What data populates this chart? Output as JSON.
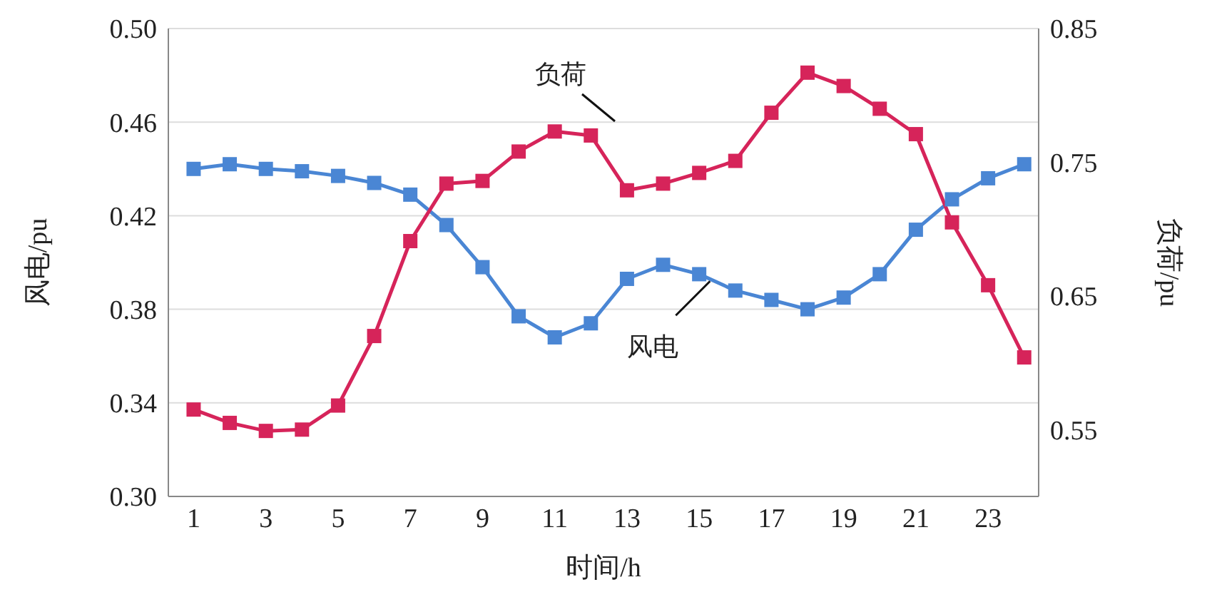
{
  "chart_data": {
    "type": "line",
    "xlabel": "时间/h",
    "ylabel": "风电/pu",
    "y2label": "负荷/pu",
    "x": [
      1,
      2,
      3,
      4,
      5,
      6,
      7,
      8,
      9,
      10,
      11,
      12,
      13,
      14,
      15,
      16,
      17,
      18,
      19,
      20,
      21,
      22,
      23,
      24
    ],
    "xlim": [
      0.3,
      24.4
    ],
    "xticks": [
      1,
      3,
      5,
      7,
      9,
      11,
      13,
      15,
      17,
      19,
      21,
      23
    ],
    "ylim": [
      0.3,
      0.5
    ],
    "yticks": [
      {
        "value": 0.3,
        "label": "0.30"
      },
      {
        "value": 0.34,
        "label": "0.34"
      },
      {
        "value": 0.38,
        "label": "0.38"
      },
      {
        "value": 0.42,
        "label": "0.42"
      },
      {
        "value": 0.46,
        "label": "0.46"
      },
      {
        "value": 0.5,
        "label": "0.50"
      }
    ],
    "y2lim": [
      0.5,
      0.85
    ],
    "y2ticks": [
      0.55,
      0.65,
      0.75,
      0.85
    ],
    "grid": "y",
    "marker": "square",
    "line_style": "solid",
    "series": [
      {
        "color": "#4a86d4",
        "values": [
          0.44,
          0.442,
          0.44,
          0.439,
          0.437,
          0.434,
          0.429,
          0.416,
          0.398,
          0.377,
          0.368,
          0.374,
          0.393,
          0.399,
          0.395,
          0.388,
          0.384,
          0.38,
          0.385,
          0.395,
          0.414,
          0.427,
          0.436,
          0.442
        ]
      },
      {
        "color": "#d6245a",
        "axis": "y2",
        "values": [
          0.565,
          0.555,
          0.549,
          0.55,
          0.568,
          0.62,
          0.691,
          0.734,
          0.736,
          0.758,
          0.773,
          0.77,
          0.729,
          0.734,
          0.742,
          0.751,
          0.787,
          0.817,
          0.807,
          0.79,
          0.771,
          0.705,
          0.658,
          0.604
        ]
      }
    ],
    "annotations": [
      "负荷",
      {
        "text": "风电",
        "x": 15.3,
        "y": 0.392
      }
    ]
  }
}
